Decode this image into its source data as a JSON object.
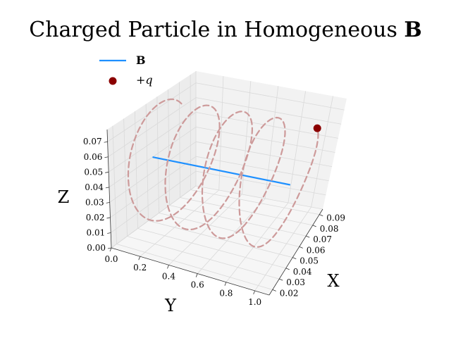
{
  "chart_data": {
    "type": "line",
    "projection": "3d",
    "title": "Charged Particle in Homogeneous B",
    "xlabel": "X",
    "ylabel": "Y",
    "zlabel": "Z",
    "x_ticks": [
      "0.02",
      "0.03",
      "0.04",
      "0.05",
      "0.06",
      "0.07",
      "0.08",
      "0.09"
    ],
    "y_ticks": [
      "0.0",
      "0.2",
      "0.4",
      "0.6",
      "0.8",
      "1.0"
    ],
    "z_ticks": [
      "0.00",
      "0.01",
      "0.02",
      "0.03",
      "0.04",
      "0.05",
      "0.06",
      "0.07"
    ],
    "xlim": [
      0.015,
      0.095
    ],
    "ylim": [
      0.0,
      1.1
    ],
    "zlim": [
      0.0,
      0.078
    ],
    "grid": true,
    "legend_position": "top-left",
    "legend": [
      {
        "label": "B",
        "marker": "line",
        "color": "#1e90ff"
      },
      {
        "label": "+q",
        "marker": "dot",
        "color": "#8b0000"
      }
    ],
    "series": [
      {
        "name": "B",
        "style": "solid",
        "color": "#1e90ff",
        "points": [
          {
            "x": 0.055,
            "y": 0.0,
            "z": 0.04
          },
          {
            "x": 0.055,
            "y": 1.0,
            "z": 0.04
          }
        ]
      },
      {
        "style": "dashed",
        "color": "#cd9a9a",
        "helix": {
          "center_x": 0.055,
          "center_z": 0.04,
          "radius": 0.035,
          "y_start": 0.0,
          "y_end": 1.0,
          "turns": 4,
          "start_angle_deg": 40
        }
      },
      {
        "name": "+q",
        "style": "point",
        "color": "#8b0000",
        "points": [
          {
            "x": 0.0818,
            "y": 1.0,
            "z": 0.0625
          }
        ]
      }
    ]
  },
  "colors": {
    "pane_left": "#ececec",
    "pane_back": "#f2f2f2",
    "pane_floor": "#f6f6f6",
    "grid": "#d9d9d9"
  }
}
